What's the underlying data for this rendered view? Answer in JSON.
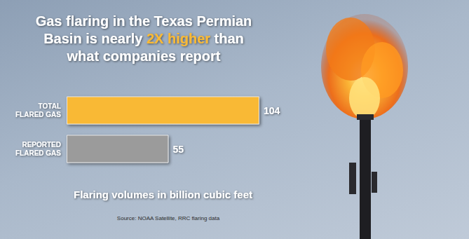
{
  "chart_data": {
    "type": "bar",
    "orientation": "horizontal",
    "title": "Gas flaring in the Texas Permian Basin is nearly 2X higher than what companies report",
    "categories": [
      "TOTAL FLARED GAS",
      "REPORTED FLARED GAS"
    ],
    "values": [
      104,
      55
    ],
    "colors": [
      "#f9b934",
      "#9b9b9b"
    ],
    "xlabel": "Flaring volumes in billion cubic feet",
    "source": "Source: NOAA Satellite, RRC flaring data",
    "xlim": [
      0,
      104
    ],
    "data_labels": true,
    "tick_labels": false,
    "grid": false
  }
}
